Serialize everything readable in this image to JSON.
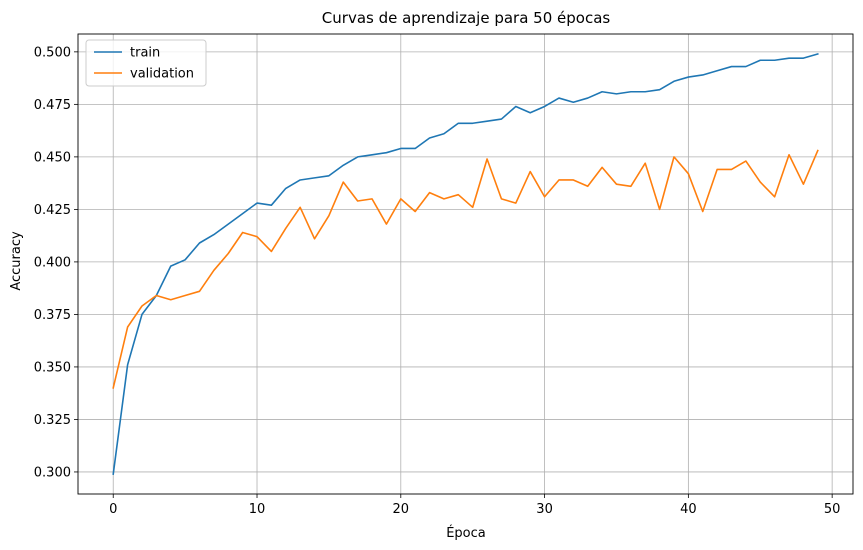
{
  "chart_data": {
    "type": "line",
    "title": "Curvas de aprendizaje para 50 épocas",
    "xlabel": "Época",
    "ylabel": "Accuracy",
    "xlim": [
      -2.45,
      51.45
    ],
    "ylim": [
      0.2895,
      0.5085
    ],
    "xticks": [
      0,
      10,
      20,
      30,
      40,
      50
    ],
    "yticks": [
      0.3,
      0.325,
      0.35,
      0.375,
      0.4,
      0.425,
      0.45,
      0.475,
      0.5
    ],
    "ytick_format": 3,
    "grid": true,
    "legend_position": "upper-left",
    "x": [
      0,
      1,
      2,
      3,
      4,
      5,
      6,
      7,
      8,
      9,
      10,
      11,
      12,
      13,
      14,
      15,
      16,
      17,
      18,
      19,
      20,
      21,
      22,
      23,
      24,
      25,
      26,
      27,
      28,
      29,
      30,
      31,
      32,
      33,
      34,
      35,
      36,
      37,
      38,
      39,
      40,
      41,
      42,
      43,
      44,
      45,
      46,
      47,
      48,
      49
    ],
    "series": [
      {
        "name": "train",
        "color": "#1f77b4",
        "values": [
          0.299,
          0.351,
          0.375,
          0.384,
          0.398,
          0.401,
          0.409,
          0.413,
          0.418,
          0.423,
          0.428,
          0.427,
          0.435,
          0.439,
          0.44,
          0.441,
          0.446,
          0.45,
          0.451,
          0.452,
          0.454,
          0.454,
          0.459,
          0.461,
          0.466,
          0.466,
          0.467,
          0.468,
          0.474,
          0.471,
          0.474,
          0.478,
          0.476,
          0.478,
          0.481,
          0.48,
          0.481,
          0.481,
          0.482,
          0.486,
          0.488,
          0.489,
          0.491,
          0.493,
          0.493,
          0.496,
          0.496,
          0.497,
          0.497,
          0.499
        ]
      },
      {
        "name": "validation",
        "color": "#ff7f0e",
        "values": [
          0.34,
          0.369,
          0.379,
          0.384,
          0.382,
          0.384,
          0.386,
          0.396,
          0.404,
          0.414,
          0.412,
          0.405,
          0.416,
          0.426,
          0.411,
          0.422,
          0.438,
          0.429,
          0.43,
          0.418,
          0.43,
          0.424,
          0.433,
          0.43,
          0.432,
          0.426,
          0.449,
          0.43,
          0.428,
          0.443,
          0.431,
          0.439,
          0.439,
          0.436,
          0.445,
          0.437,
          0.436,
          0.447,
          0.425,
          0.45,
          0.442,
          0.424,
          0.444,
          0.444,
          0.448,
          0.438,
          0.431,
          0.451,
          0.437,
          0.453
        ]
      }
    ]
  }
}
